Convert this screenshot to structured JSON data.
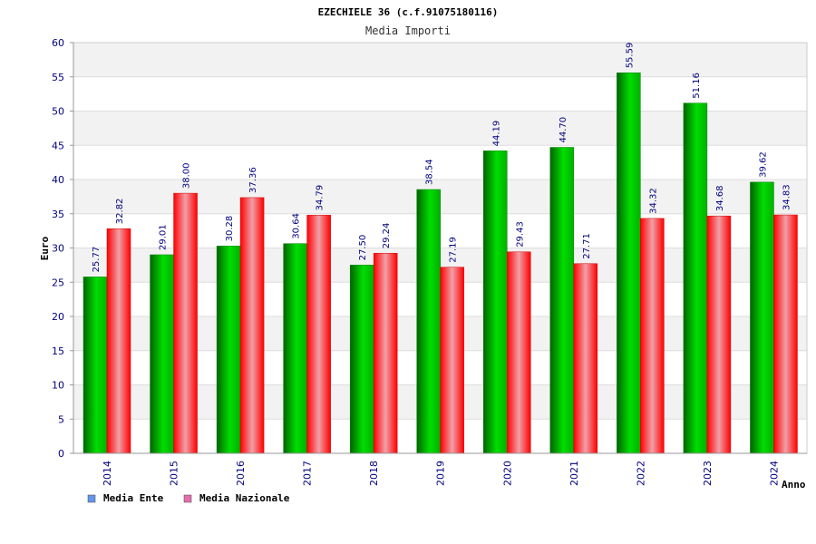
{
  "chart_data": {
    "type": "bar",
    "title": "EZECHIELE 36 (c.f.91075180116)",
    "subtitle": "Media Importi",
    "xlabel": "Anno",
    "ylabel": "Euro",
    "ylim": [
      0,
      60
    ],
    "y_ticks": [
      0,
      5,
      10,
      15,
      20,
      25,
      30,
      35,
      40,
      45,
      50,
      55,
      60
    ],
    "grid": true,
    "legend_position": "bottom-left",
    "categories": [
      "2014",
      "2015",
      "2016",
      "2017",
      "2018",
      "2019",
      "2020",
      "2021",
      "2022",
      "2023",
      "2024"
    ],
    "series": [
      {
        "name": "Media Ente",
        "color": "#00c000",
        "legend_color": "#6495ed",
        "values": [
          25.77,
          29.01,
          30.28,
          30.64,
          27.5,
          38.54,
          44.19,
          44.7,
          55.59,
          51.16,
          39.62
        ],
        "labels": [
          "25.77",
          "29.01",
          "30.28",
          "30.64",
          "27.50",
          "38.54",
          "44.19",
          "44.70",
          "55.59",
          "51.16",
          "39.62"
        ]
      },
      {
        "name": "Media Nazionale",
        "color": "#ff0000",
        "legend_color": "#e36fae",
        "values": [
          32.82,
          38.0,
          37.36,
          34.79,
          29.24,
          27.19,
          29.43,
          27.71,
          34.32,
          34.68,
          34.83
        ],
        "labels": [
          "32.82",
          "38.00",
          "37.36",
          "34.79",
          "29.24",
          "27.19",
          "29.43",
          "27.71",
          "34.32",
          "34.68",
          "34.83"
        ]
      }
    ]
  }
}
